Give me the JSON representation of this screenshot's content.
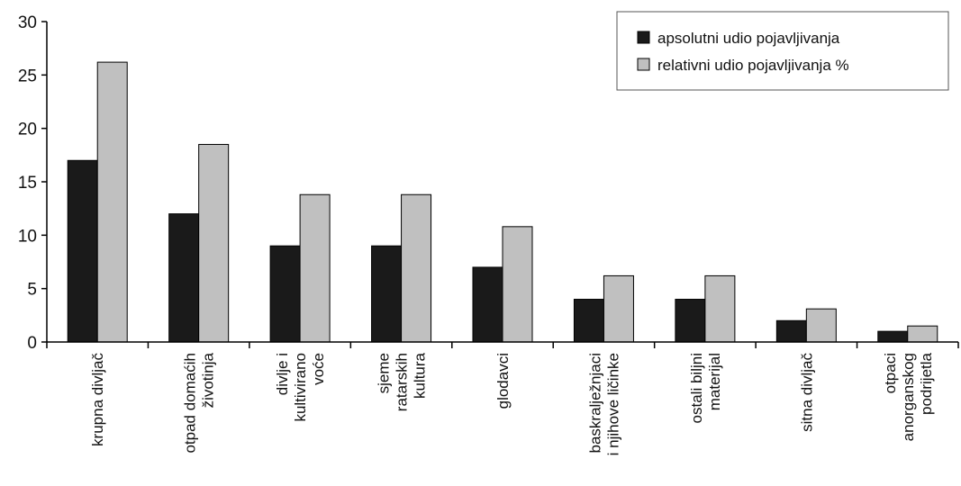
{
  "chart_data": {
    "type": "bar",
    "categories": [
      [
        "krupna divljač"
      ],
      [
        "otpad domaćih",
        "životinja"
      ],
      [
        "divlje i",
        "kultivirano",
        "voće"
      ],
      [
        "sjeme",
        "ratarskih",
        "kultura"
      ],
      [
        "glodavci"
      ],
      [
        "baskralježnjaci",
        "i njihove ličinke"
      ],
      [
        "ostali biljni",
        "materijal"
      ],
      [
        "sitna divljač"
      ],
      [
        "otpaci",
        "anorganskog",
        "podrijetla"
      ]
    ],
    "series": [
      {
        "name": "apsolutni udio pojavljivanja",
        "color": "#1a1a1a",
        "values": [
          17,
          12,
          9,
          9,
          7,
          4,
          4,
          2,
          1
        ]
      },
      {
        "name": "relativni udio pojavljivanja %",
        "color": "#c0c0c0",
        "values": [
          26.2,
          18.5,
          13.8,
          13.8,
          10.8,
          6.2,
          6.2,
          3.1,
          1.5
        ]
      }
    ],
    "ylim": [
      0,
      30
    ],
    "yticks": [
      0,
      5,
      10,
      15,
      20,
      25,
      30
    ],
    "grid": false,
    "legend_position": "top-right",
    "title": "",
    "xlabel": "",
    "ylabel": ""
  }
}
